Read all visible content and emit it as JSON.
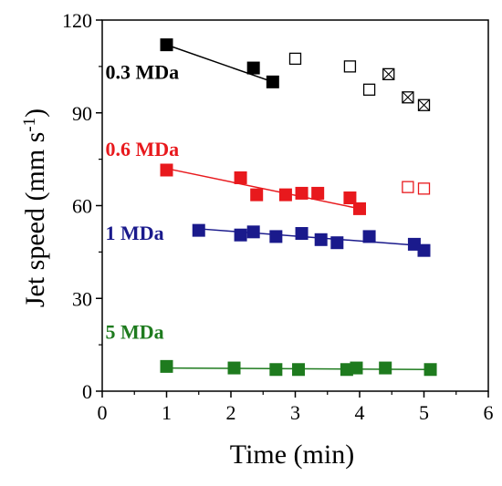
{
  "chart_data": {
    "type": "scatter",
    "title": "",
    "xlabel": "Time (min)",
    "ylabel_main": "Jet speed (mm s",
    "ylabel_sup": "-1",
    "ylabel_close": ")",
    "xlim": [
      0,
      6
    ],
    "ylim": [
      0,
      120
    ],
    "x_ticks": [
      "0",
      "1",
      "2",
      "3",
      "4",
      "5",
      "6"
    ],
    "y_ticks": [
      "0",
      "30",
      "60",
      "90",
      "120"
    ],
    "grid": false,
    "legend": "inline labels",
    "series": [
      {
        "name": "0.3 MDa",
        "color": "#000000",
        "marker": "filled-square",
        "points": [
          [
            1.0,
            112
          ],
          [
            2.35,
            104.5
          ],
          [
            2.65,
            100
          ]
        ],
        "fit": [
          [
            1.0,
            112
          ],
          [
            2.65,
            100
          ]
        ]
      },
      {
        "name": "0.3 MDa (open)",
        "color": "#000000",
        "marker": "open-square",
        "points": [
          [
            3.0,
            107.5
          ],
          [
            3.85,
            105
          ],
          [
            4.15,
            97.5
          ]
        ]
      },
      {
        "name": "0.3 MDa (crossed)",
        "color": "#000000",
        "marker": "crossed-square",
        "points": [
          [
            4.45,
            102.5
          ],
          [
            4.75,
            95
          ],
          [
            5.0,
            92.5
          ]
        ]
      },
      {
        "name": "0.6 MDa",
        "color": "#e8191d",
        "marker": "filled-square",
        "points": [
          [
            1.0,
            71.5
          ],
          [
            2.15,
            69
          ],
          [
            2.4,
            63.5
          ],
          [
            2.85,
            63.5
          ],
          [
            3.1,
            64
          ],
          [
            3.35,
            64
          ],
          [
            3.85,
            62.5
          ],
          [
            4.0,
            59
          ]
        ],
        "fit": [
          [
            1.0,
            72
          ],
          [
            4.0,
            59
          ]
        ]
      },
      {
        "name": "0.6 MDa (open)",
        "color": "#e8191d",
        "marker": "open-square",
        "points": [
          [
            4.75,
            66
          ],
          [
            5.0,
            65.5
          ]
        ]
      },
      {
        "name": "1 MDa",
        "color": "#1a1a8c",
        "marker": "filled-square",
        "points": [
          [
            1.5,
            52
          ],
          [
            2.15,
            50.5
          ],
          [
            2.35,
            51.5
          ],
          [
            2.7,
            50
          ],
          [
            3.1,
            51
          ],
          [
            3.4,
            49
          ],
          [
            3.65,
            48
          ],
          [
            4.15,
            50
          ],
          [
            4.85,
            47.5
          ],
          [
            5.0,
            45.5
          ]
        ],
        "fit": [
          [
            1.5,
            52.5
          ],
          [
            5.0,
            47
          ]
        ]
      },
      {
        "name": "5 MDa",
        "color": "#1e7b1e",
        "marker": "filled-square",
        "points": [
          [
            1.0,
            8
          ],
          [
            2.05,
            7.5
          ],
          [
            2.7,
            7
          ],
          [
            3.05,
            7
          ],
          [
            3.8,
            7
          ],
          [
            3.95,
            7.5
          ],
          [
            4.4,
            7.5
          ],
          [
            5.1,
            7
          ]
        ],
        "fit": [
          [
            1.0,
            7.5
          ],
          [
            5.1,
            7
          ]
        ]
      }
    ],
    "labels": [
      {
        "text": "0.3 MDa",
        "color": "#000000"
      },
      {
        "text": "0.6 MDa",
        "color": "#e8191d"
      },
      {
        "text": "1 MDa",
        "color": "#1a1a8c"
      },
      {
        "text": "5 MDa",
        "color": "#1e7b1e"
      }
    ]
  }
}
